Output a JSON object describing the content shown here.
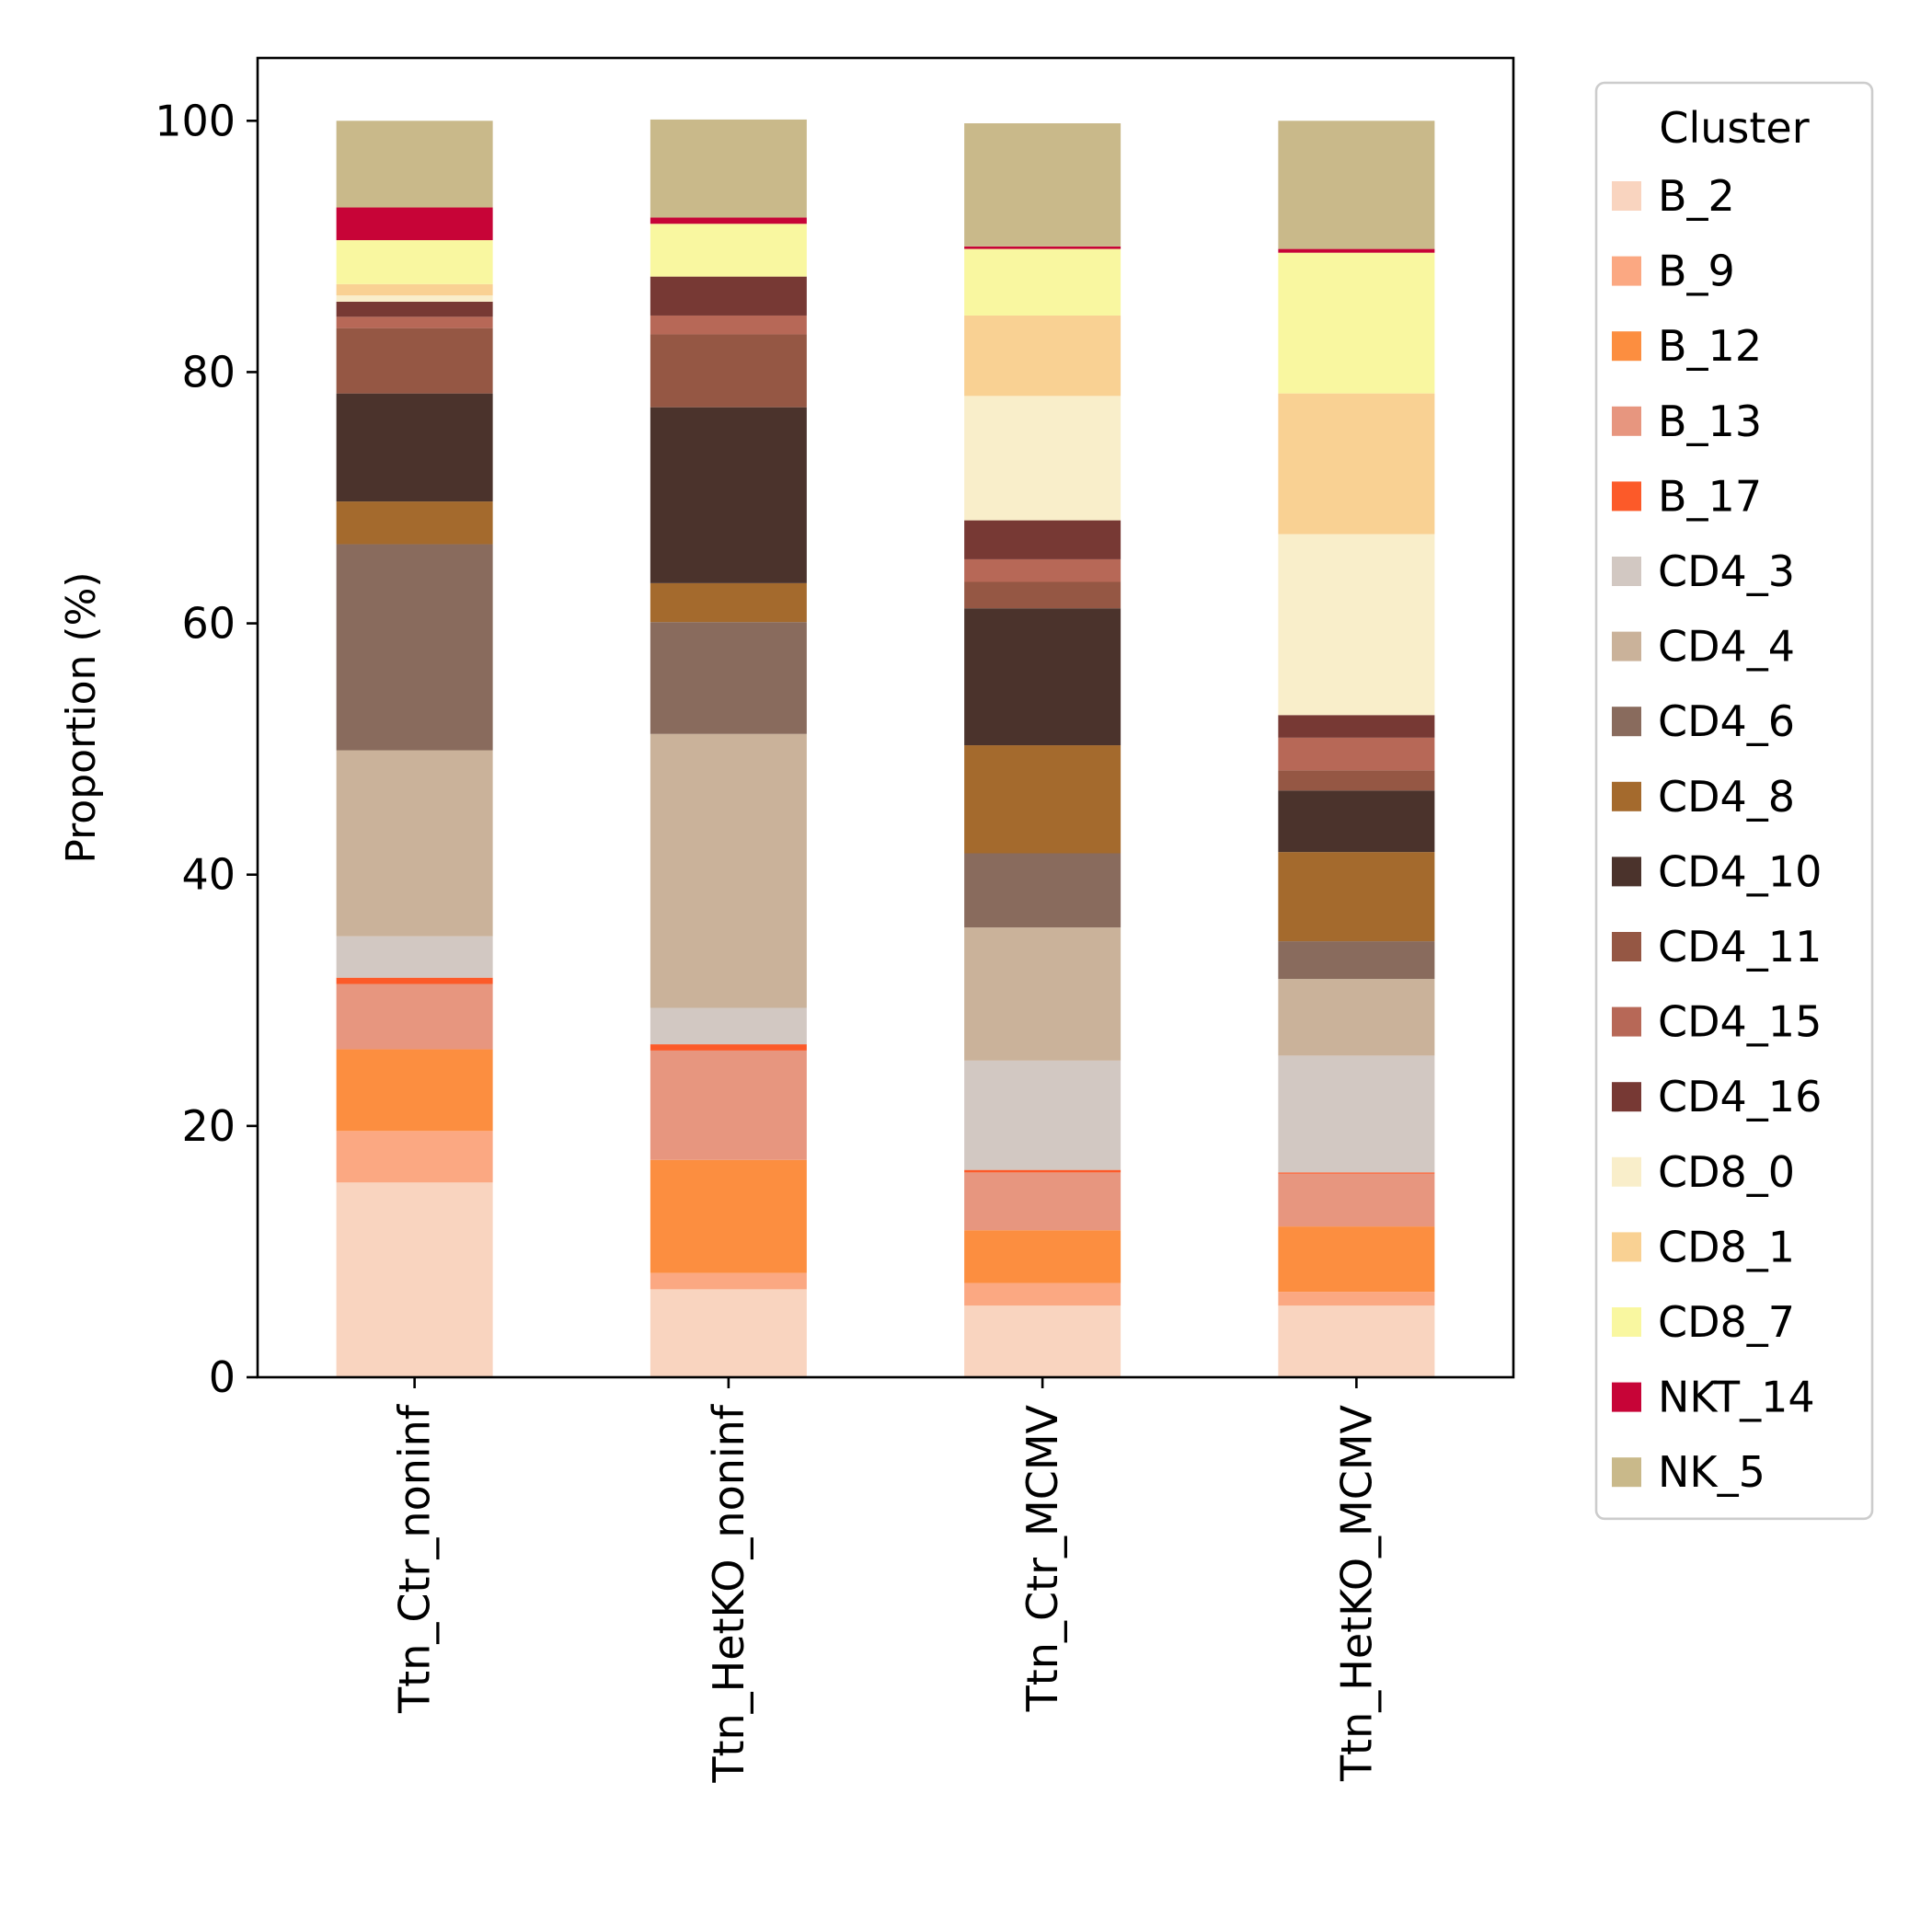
{
  "chart_data": {
    "type": "bar",
    "stacked": true,
    "ylabel": "Proportion (%)",
    "xlabel": "",
    "ylim": [
      0,
      105
    ],
    "yticks": [
      0,
      20,
      40,
      60,
      80,
      100
    ],
    "categories": [
      "Ttn_Ctr_noninf",
      "Ttn_HetKO_noninf",
      "Ttn_Ctr_MCMV",
      "Ttn_HetKO_MCMV"
    ],
    "legend": {
      "title": "Cluster",
      "position": "outside-right"
    },
    "series": [
      {
        "name": "B_2",
        "color": "#F9D4BF",
        "values": [
          15.5,
          7.0,
          5.7,
          5.7
        ]
      },
      {
        "name": "B_9",
        "color": "#FBA882",
        "values": [
          4.1,
          1.3,
          1.8,
          1.1
        ]
      },
      {
        "name": "B_12",
        "color": "#FC8E40",
        "values": [
          6.5,
          9.0,
          4.2,
          5.2
        ]
      },
      {
        "name": "B_13",
        "color": "#E7967F",
        "values": [
          5.2,
          8.7,
          4.6,
          4.2
        ]
      },
      {
        "name": "B_17",
        "color": "#FC5A29",
        "values": [
          0.5,
          0.5,
          0.2,
          0.1
        ]
      },
      {
        "name": "CD4_3",
        "color": "#D2C8C2",
        "values": [
          3.3,
          2.9,
          8.7,
          9.3
        ]
      },
      {
        "name": "CD4_4",
        "color": "#CAB29A",
        "values": [
          14.8,
          21.8,
          10.6,
          6.1
        ]
      },
      {
        "name": "CD4_6",
        "color": "#896B5D",
        "values": [
          16.4,
          8.9,
          5.9,
          3.0
        ]
      },
      {
        "name": "CD4_8",
        "color": "#A46A2D",
        "values": [
          3.4,
          3.1,
          8.6,
          7.1
        ]
      },
      {
        "name": "CD4_10",
        "color": "#4B332C",
        "values": [
          8.6,
          14.0,
          10.9,
          4.9
        ]
      },
      {
        "name": "CD4_11",
        "color": "#955744",
        "values": [
          5.2,
          5.8,
          2.1,
          1.6
        ]
      },
      {
        "name": "CD4_15",
        "color": "#B76857",
        "values": [
          0.9,
          1.5,
          1.8,
          2.6
        ]
      },
      {
        "name": "CD4_16",
        "color": "#773934",
        "values": [
          1.2,
          3.1,
          3.1,
          1.8
        ]
      },
      {
        "name": "CD8_0",
        "color": "#F9EECA",
        "values": [
          0.5,
          0.0,
          9.9,
          14.4
        ]
      },
      {
        "name": "CD8_1",
        "color": "#F9D193",
        "values": [
          0.9,
          0.0,
          6.4,
          11.2
        ]
      },
      {
        "name": "CD8_7",
        "color": "#F9F7A0",
        "values": [
          3.5,
          4.2,
          5.3,
          11.2
        ]
      },
      {
        "name": "NKT_14",
        "color": "#C70437",
        "values": [
          2.6,
          0.5,
          0.2,
          0.3
        ]
      },
      {
        "name": "NK_5",
        "color": "#C9B98A",
        "values": [
          6.9,
          7.8,
          9.8,
          10.2
        ]
      }
    ]
  }
}
